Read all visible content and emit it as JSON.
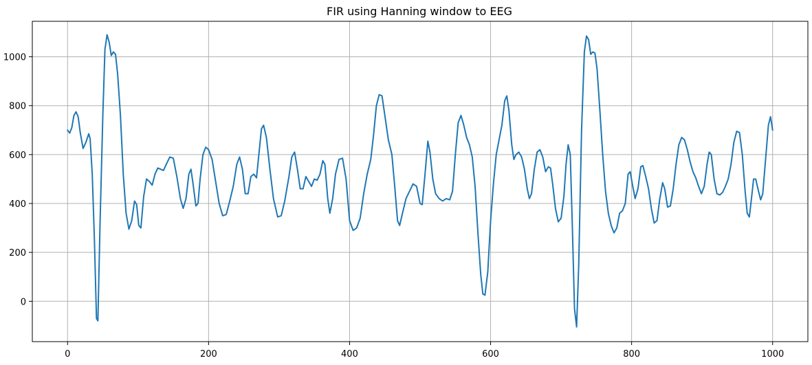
{
  "chart_data": {
    "type": "line",
    "title": "FIR using Hanning window to EEG",
    "xlabel": "",
    "ylabel": "",
    "xlim": [
      -50,
      1050
    ],
    "ylim": [
      -165,
      1145
    ],
    "xticks": [
      0,
      200,
      400,
      600,
      800,
      1000
    ],
    "yticks": [
      0,
      200,
      400,
      600,
      800,
      1000
    ],
    "grid": true,
    "legend": "none",
    "colors": {
      "line": "#1f77b4",
      "grid": "#b0b0b0",
      "axes": "#000000"
    },
    "series": [
      {
        "color": "#1f77b4",
        "points": [
          [
            0,
            700
          ],
          [
            3,
            688
          ],
          [
            6,
            710
          ],
          [
            9,
            760
          ],
          [
            12,
            775
          ],
          [
            15,
            755
          ],
          [
            18,
            690
          ],
          [
            22,
            625
          ],
          [
            26,
            650
          ],
          [
            30,
            685
          ],
          [
            32,
            665
          ],
          [
            35,
            520
          ],
          [
            38,
            260
          ],
          [
            41,
            -70
          ],
          [
            43,
            -80
          ],
          [
            46,
            310
          ],
          [
            50,
            760
          ],
          [
            53,
            1030
          ],
          [
            56,
            1090
          ],
          [
            59,
            1060
          ],
          [
            62,
            1005
          ],
          [
            65,
            1020
          ],
          [
            68,
            1010
          ],
          [
            71,
            930
          ],
          [
            75,
            760
          ],
          [
            79,
            520
          ],
          [
            83,
            360
          ],
          [
            87,
            295
          ],
          [
            91,
            330
          ],
          [
            95,
            410
          ],
          [
            98,
            395
          ],
          [
            101,
            310
          ],
          [
            104,
            300
          ],
          [
            108,
            430
          ],
          [
            112,
            500
          ],
          [
            116,
            490
          ],
          [
            120,
            475
          ],
          [
            124,
            520
          ],
          [
            128,
            545
          ],
          [
            132,
            540
          ],
          [
            136,
            535
          ],
          [
            140,
            560
          ],
          [
            145,
            590
          ],
          [
            150,
            585
          ],
          [
            155,
            510
          ],
          [
            160,
            420
          ],
          [
            164,
            380
          ],
          [
            168,
            420
          ],
          [
            172,
            520
          ],
          [
            175,
            540
          ],
          [
            178,
            480
          ],
          [
            182,
            390
          ],
          [
            185,
            400
          ],
          [
            188,
            500
          ],
          [
            192,
            600
          ],
          [
            196,
            630
          ],
          [
            200,
            620
          ],
          [
            205,
            580
          ],
          [
            210,
            490
          ],
          [
            215,
            400
          ],
          [
            220,
            350
          ],
          [
            225,
            355
          ],
          [
            230,
            410
          ],
          [
            235,
            470
          ],
          [
            240,
            560
          ],
          [
            244,
            590
          ],
          [
            248,
            540
          ],
          [
            252,
            440
          ],
          [
            256,
            440
          ],
          [
            260,
            510
          ],
          [
            264,
            520
          ],
          [
            268,
            505
          ],
          [
            272,
            620
          ],
          [
            275,
            705
          ],
          [
            278,
            720
          ],
          [
            282,
            670
          ],
          [
            287,
            540
          ],
          [
            292,
            420
          ],
          [
            298,
            345
          ],
          [
            303,
            350
          ],
          [
            308,
            410
          ],
          [
            314,
            510
          ],
          [
            318,
            590
          ],
          [
            322,
            610
          ],
          [
            326,
            540
          ],
          [
            330,
            460
          ],
          [
            334,
            460
          ],
          [
            338,
            510
          ],
          [
            342,
            490
          ],
          [
            346,
            470
          ],
          [
            350,
            500
          ],
          [
            354,
            495
          ],
          [
            358,
            520
          ],
          [
            362,
            575
          ],
          [
            365,
            560
          ],
          [
            369,
            420
          ],
          [
            372,
            360
          ],
          [
            376,
            420
          ],
          [
            380,
            520
          ],
          [
            385,
            580
          ],
          [
            390,
            585
          ],
          [
            395,
            500
          ],
          [
            400,
            330
          ],
          [
            405,
            290
          ],
          [
            410,
            300
          ],
          [
            415,
            340
          ],
          [
            420,
            440
          ],
          [
            425,
            520
          ],
          [
            430,
            580
          ],
          [
            434,
            680
          ],
          [
            438,
            800
          ],
          [
            442,
            845
          ],
          [
            446,
            840
          ],
          [
            450,
            760
          ],
          [
            455,
            660
          ],
          [
            460,
            600
          ],
          [
            464,
            470
          ],
          [
            468,
            330
          ],
          [
            471,
            310
          ],
          [
            475,
            360
          ],
          [
            480,
            420
          ],
          [
            485,
            450
          ],
          [
            490,
            480
          ],
          [
            495,
            470
          ],
          [
            500,
            400
          ],
          [
            503,
            395
          ],
          [
            507,
            520
          ],
          [
            511,
            655
          ],
          [
            514,
            610
          ],
          [
            518,
            500
          ],
          [
            522,
            440
          ],
          [
            527,
            420
          ],
          [
            532,
            410
          ],
          [
            537,
            420
          ],
          [
            542,
            415
          ],
          [
            546,
            450
          ],
          [
            550,
            600
          ],
          [
            554,
            730
          ],
          [
            558,
            760
          ],
          [
            562,
            720
          ],
          [
            566,
            670
          ],
          [
            570,
            640
          ],
          [
            574,
            590
          ],
          [
            578,
            470
          ],
          [
            582,
            280
          ],
          [
            586,
            110
          ],
          [
            589,
            30
          ],
          [
            592,
            25
          ],
          [
            596,
            120
          ],
          [
            600,
            330
          ],
          [
            604,
            480
          ],
          [
            608,
            600
          ],
          [
            612,
            660
          ],
          [
            616,
            720
          ],
          [
            620,
            820
          ],
          [
            623,
            840
          ],
          [
            626,
            780
          ],
          [
            630,
            640
          ],
          [
            633,
            580
          ],
          [
            636,
            600
          ],
          [
            640,
            610
          ],
          [
            644,
            590
          ],
          [
            648,
            540
          ],
          [
            652,
            460
          ],
          [
            655,
            420
          ],
          [
            658,
            440
          ],
          [
            662,
            540
          ],
          [
            666,
            610
          ],
          [
            670,
            620
          ],
          [
            674,
            590
          ],
          [
            678,
            530
          ],
          [
            682,
            550
          ],
          [
            685,
            545
          ],
          [
            688,
            480
          ],
          [
            692,
            380
          ],
          [
            696,
            325
          ],
          [
            700,
            340
          ],
          [
            704,
            430
          ],
          [
            707,
            560
          ],
          [
            710,
            640
          ],
          [
            713,
            600
          ],
          [
            716,
            300
          ],
          [
            719,
            -30
          ],
          [
            722,
            -105
          ],
          [
            725,
            150
          ],
          [
            729,
            700
          ],
          [
            733,
            1020
          ],
          [
            736,
            1085
          ],
          [
            739,
            1070
          ],
          [
            742,
            1010
          ],
          [
            745,
            1020
          ],
          [
            748,
            1015
          ],
          [
            751,
            950
          ],
          [
            755,
            780
          ],
          [
            759,
            600
          ],
          [
            763,
            450
          ],
          [
            767,
            360
          ],
          [
            771,
            310
          ],
          [
            775,
            280
          ],
          [
            779,
            300
          ],
          [
            783,
            360
          ],
          [
            787,
            370
          ],
          [
            791,
            400
          ],
          [
            795,
            520
          ],
          [
            798,
            530
          ],
          [
            801,
            480
          ],
          [
            805,
            420
          ],
          [
            809,
            460
          ],
          [
            813,
            550
          ],
          [
            816,
            555
          ],
          [
            820,
            510
          ],
          [
            824,
            460
          ],
          [
            828,
            380
          ],
          [
            832,
            320
          ],
          [
            836,
            330
          ],
          [
            840,
            420
          ],
          [
            844,
            485
          ],
          [
            847,
            460
          ],
          [
            851,
            385
          ],
          [
            855,
            390
          ],
          [
            859,
            460
          ],
          [
            863,
            560
          ],
          [
            867,
            640
          ],
          [
            871,
            670
          ],
          [
            875,
            660
          ],
          [
            879,
            620
          ],
          [
            883,
            570
          ],
          [
            887,
            530
          ],
          [
            891,
            505
          ],
          [
            895,
            470
          ],
          [
            899,
            440
          ],
          [
            903,
            470
          ],
          [
            907,
            560
          ],
          [
            910,
            610
          ],
          [
            913,
            600
          ],
          [
            917,
            500
          ],
          [
            921,
            440
          ],
          [
            925,
            435
          ],
          [
            929,
            445
          ],
          [
            933,
            470
          ],
          [
            937,
            500
          ],
          [
            941,
            560
          ],
          [
            945,
            650
          ],
          [
            949,
            695
          ],
          [
            953,
            690
          ],
          [
            957,
            600
          ],
          [
            961,
            450
          ],
          [
            964,
            360
          ],
          [
            967,
            345
          ],
          [
            970,
            420
          ],
          [
            973,
            500
          ],
          [
            976,
            500
          ],
          [
            980,
            450
          ],
          [
            983,
            415
          ],
          [
            986,
            440
          ],
          [
            990,
            580
          ],
          [
            994,
            720
          ],
          [
            997,
            755
          ],
          [
            1000,
            700
          ]
        ]
      }
    ]
  }
}
